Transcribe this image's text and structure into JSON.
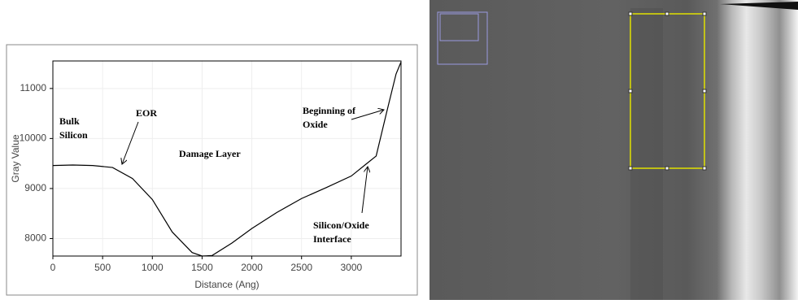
{
  "chart_data": {
    "type": "line",
    "xlabel": "Distance (Ang)",
    "ylabel": "Gray Value",
    "x": [
      0,
      200,
      400,
      600,
      800,
      1000,
      1200,
      1400,
      1500,
      1600,
      1800,
      2000,
      2250,
      2500,
      2750,
      3000,
      3150,
      3250,
      3350,
      3450,
      3500
    ],
    "values": [
      9460,
      9470,
      9460,
      9420,
      9200,
      8780,
      8130,
      7720,
      7650,
      7660,
      7910,
      8200,
      8520,
      8800,
      9020,
      9250,
      9490,
      9650,
      10480,
      11290,
      11530
    ],
    "color": "#000000",
    "xlim": [
      0,
      3500
    ],
    "ylim": [
      7650,
      11550
    ],
    "xticks": [
      0,
      500,
      1000,
      1500,
      2000,
      2500,
      3000
    ],
    "yticks": [
      8000,
      9000,
      10000,
      11000
    ],
    "grid": true,
    "annotations": [
      {
        "lines": [
          "Bulk",
          "Silicon"
        ]
      },
      {
        "lines": [
          "EOR"
        ]
      },
      {
        "lines": [
          "Damage Layer"
        ]
      },
      {
        "lines": [
          "Beginning of",
          "Oxide"
        ]
      },
      {
        "lines": [
          "Silicon/Oxide",
          "Interface"
        ]
      }
    ]
  }
}
